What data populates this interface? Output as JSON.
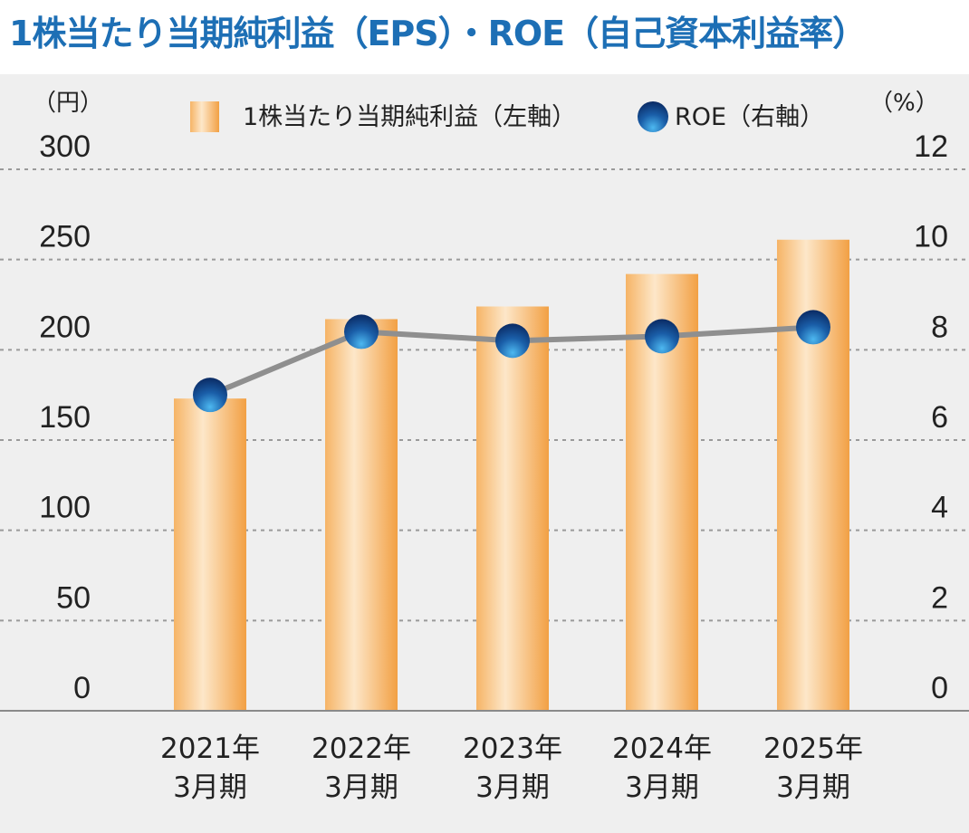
{
  "title": "1株当たり当期純利益（EPS）・ROE（自己資本利益率）",
  "chart_data": {
    "type": "bar",
    "categories": [
      [
        "2021年",
        "3月期"
      ],
      [
        "2022年",
        "3月期"
      ],
      [
        "2023年",
        "3月期"
      ],
      [
        "2024年",
        "3月期"
      ],
      [
        "2025年",
        "3月期"
      ]
    ],
    "series": [
      {
        "name": "1株当たり当期純利益（左軸）",
        "type": "bar",
        "axis": "left",
        "values": [
          173,
          217,
          224,
          242,
          261
        ]
      },
      {
        "name": "ROE（右軸）",
        "type": "line",
        "axis": "right",
        "values": [
          7.0,
          8.4,
          8.2,
          8.3,
          8.5
        ]
      }
    ],
    "left_axis": {
      "unit": "（円）",
      "ylim": [
        0,
        300
      ],
      "ticks": [
        "0",
        "50",
        "100",
        "150",
        "200",
        "250",
        "300"
      ]
    },
    "right_axis": {
      "unit": "（%）",
      "ylim": [
        0,
        12
      ],
      "ticks": [
        "0",
        "2",
        "4",
        "6",
        "8",
        "10",
        "12"
      ]
    },
    "grid": true,
    "legend": "top",
    "colors": {
      "bar_light": "#fde7c9",
      "bar_dark": "#f2a44c",
      "line": "#8f8f8f",
      "marker_light": "#3fa9e6",
      "marker_dark": "#0d2f6b",
      "title": "#1d6fb5"
    }
  }
}
